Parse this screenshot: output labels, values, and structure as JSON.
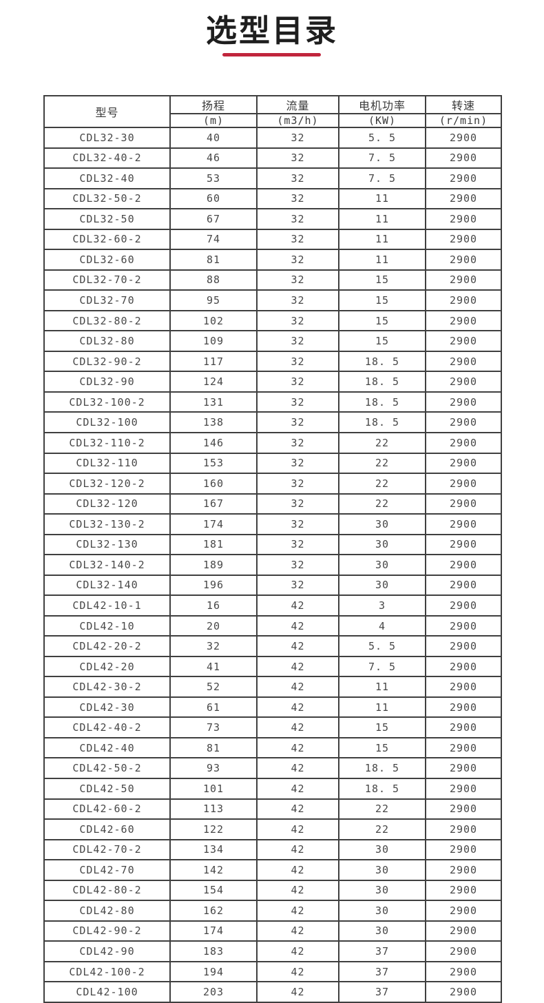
{
  "page": {
    "title": "选型目录",
    "accent_color": "#c1253c"
  },
  "table": {
    "columns": [
      {
        "label": "型号",
        "unit": ""
      },
      {
        "label": "扬程",
        "unit": "(m)"
      },
      {
        "label": "流量",
        "unit": "(m3/h)"
      },
      {
        "label": "电机功率",
        "unit": "(KW)"
      },
      {
        "label": "转速",
        "unit": "(r/min)"
      }
    ],
    "rows": [
      [
        "CDL32-30",
        "40",
        "32",
        "5. 5",
        "2900"
      ],
      [
        "CDL32-40-2",
        "46",
        "32",
        "7. 5",
        "2900"
      ],
      [
        "CDL32-40",
        "53",
        "32",
        "7. 5",
        "2900"
      ],
      [
        "CDL32-50-2",
        "60",
        "32",
        "11",
        "2900"
      ],
      [
        "CDL32-50",
        "67",
        "32",
        "11",
        "2900"
      ],
      [
        "CDL32-60-2",
        "74",
        "32",
        "11",
        "2900"
      ],
      [
        "CDL32-60",
        "81",
        "32",
        "11",
        "2900"
      ],
      [
        "CDL32-70-2",
        "88",
        "32",
        "15",
        "2900"
      ],
      [
        "CDL32-70",
        "95",
        "32",
        "15",
        "2900"
      ],
      [
        "CDL32-80-2",
        "102",
        "32",
        "15",
        "2900"
      ],
      [
        "CDL32-80",
        "109",
        "32",
        "15",
        "2900"
      ],
      [
        "CDL32-90-2",
        "117",
        "32",
        "18. 5",
        "2900"
      ],
      [
        "CDL32-90",
        "124",
        "32",
        "18. 5",
        "2900"
      ],
      [
        "CDL32-100-2",
        "131",
        "32",
        "18. 5",
        "2900"
      ],
      [
        "CDL32-100",
        "138",
        "32",
        "18. 5",
        "2900"
      ],
      [
        "CDL32-110-2",
        "146",
        "32",
        "22",
        "2900"
      ],
      [
        "CDL32-110",
        "153",
        "32",
        "22",
        "2900"
      ],
      [
        "CDL32-120-2",
        "160",
        "32",
        "22",
        "2900"
      ],
      [
        "CDL32-120",
        "167",
        "32",
        "22",
        "2900"
      ],
      [
        "CDL32-130-2",
        "174",
        "32",
        "30",
        "2900"
      ],
      [
        "CDL32-130",
        "181",
        "32",
        "30",
        "2900"
      ],
      [
        "CDL32-140-2",
        "189",
        "32",
        "30",
        "2900"
      ],
      [
        "CDL32-140",
        "196",
        "32",
        "30",
        "2900"
      ],
      [
        "CDL42-10-1",
        "16",
        "42",
        "3",
        "2900"
      ],
      [
        "CDL42-10",
        "20",
        "42",
        "4",
        "2900"
      ],
      [
        "CDL42-20-2",
        "32",
        "42",
        "5. 5",
        "2900"
      ],
      [
        "CDL42-20",
        "41",
        "42",
        "7. 5",
        "2900"
      ],
      [
        "CDL42-30-2",
        "52",
        "42",
        "11",
        "2900"
      ],
      [
        "CDL42-30",
        "61",
        "42",
        "11",
        "2900"
      ],
      [
        "CDL42-40-2",
        "73",
        "42",
        "15",
        "2900"
      ],
      [
        "CDL42-40",
        "81",
        "42",
        "15",
        "2900"
      ],
      [
        "CDL42-50-2",
        "93",
        "42",
        "18. 5",
        "2900"
      ],
      [
        "CDL42-50",
        "101",
        "42",
        "18. 5",
        "2900"
      ],
      [
        "CDL42-60-2",
        "113",
        "42",
        "22",
        "2900"
      ],
      [
        "CDL42-60",
        "122",
        "42",
        "22",
        "2900"
      ],
      [
        "CDL42-70-2",
        "134",
        "42",
        "30",
        "2900"
      ],
      [
        "CDL42-70",
        "142",
        "42",
        "30",
        "2900"
      ],
      [
        "CDL42-80-2",
        "154",
        "42",
        "30",
        "2900"
      ],
      [
        "CDL42-80",
        "162",
        "42",
        "30",
        "2900"
      ],
      [
        "CDL42-90-2",
        "174",
        "42",
        "30",
        "2900"
      ],
      [
        "CDL42-90",
        "183",
        "42",
        "37",
        "2900"
      ],
      [
        "CDL42-100-2",
        "194",
        "42",
        "37",
        "2900"
      ],
      [
        "CDL42-100",
        "203",
        "42",
        "37",
        "2900"
      ]
    ]
  }
}
